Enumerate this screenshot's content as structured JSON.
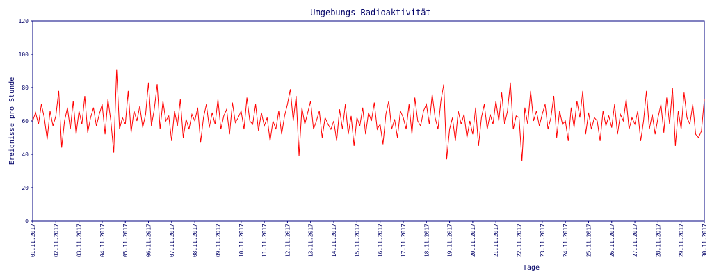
{
  "chart_data": {
    "type": "line",
    "title": "Umgebungs-Radioaktivität",
    "x_label": "Tage",
    "y_label": "Ereignisse pro Stunde",
    "categories": [
      "01.11.2017",
      null,
      null,
      null,
      null,
      null,
      null,
      null,
      "02.11.2017",
      null,
      null,
      null,
      null,
      null,
      null,
      null,
      "03.11.2017",
      null,
      null,
      null,
      null,
      null,
      null,
      null,
      "04.11.2017",
      null,
      null,
      null,
      null,
      null,
      null,
      null,
      "05.11.2017",
      null,
      null,
      null,
      null,
      null,
      null,
      null,
      "06.11.2017",
      null,
      null,
      null,
      null,
      null,
      null,
      null,
      "07.11.2017",
      null,
      null,
      null,
      null,
      null,
      null,
      null,
      "08.11.2017",
      null,
      null,
      null,
      null,
      null,
      null,
      null,
      "09.11.2017",
      null,
      null,
      null,
      null,
      null,
      null,
      null,
      "10.11.2017",
      null,
      null,
      null,
      null,
      null,
      null,
      null,
      "11.11.2017",
      null,
      null,
      null,
      null,
      null,
      null,
      null,
      "12.11.2017",
      null,
      null,
      null,
      null,
      null,
      null,
      null,
      "13.11.2017",
      null,
      null,
      null,
      null,
      null,
      null,
      null,
      "14.11.2017",
      null,
      null,
      null,
      null,
      null,
      null,
      null,
      "15.11.2017",
      null,
      null,
      null,
      null,
      null,
      null,
      null,
      "16.11.2017",
      null,
      null,
      null,
      null,
      null,
      null,
      null,
      "17.11.2017",
      null,
      null,
      null,
      null,
      null,
      null,
      null,
      "18.11.2017",
      null,
      null,
      null,
      null,
      null,
      null,
      null,
      "19.11.2017",
      null,
      null,
      null,
      null,
      null,
      null,
      null,
      "20.11.2017",
      null,
      null,
      null,
      null,
      null,
      null,
      null,
      "21.11.2017",
      null,
      null,
      null,
      null,
      null,
      null,
      null,
      "22.11.2017",
      null,
      null,
      null,
      null,
      null,
      null,
      null,
      "23.11.2017",
      null,
      null,
      null,
      null,
      null,
      null,
      null,
      "24.11.2017",
      null,
      null,
      null,
      null,
      null,
      null,
      null,
      "25.11.2017",
      null,
      null,
      null,
      null,
      null,
      null,
      null,
      "26.11.2017",
      null,
      null,
      null,
      null,
      null,
      null,
      null,
      "27.11.2017",
      null,
      null,
      null,
      null,
      null,
      null,
      null,
      "28.11.2017",
      null,
      null,
      null,
      null,
      null,
      null,
      null,
      "29.11.2017",
      null,
      null,
      null,
      null,
      null,
      null,
      null,
      "30.11.2017"
    ],
    "values": [
      60,
      65,
      58,
      70,
      62,
      49,
      66,
      57,
      63,
      78,
      44,
      60,
      68,
      55,
      72,
      52,
      66,
      58,
      75,
      53,
      62,
      68,
      57,
      64,
      70,
      52,
      73,
      60,
      41,
      91,
      55,
      62,
      58,
      78,
      53,
      66,
      60,
      69,
      56,
      64,
      83,
      57,
      67,
      82,
      55,
      72,
      60,
      63,
      48,
      66,
      57,
      73,
      50,
      61,
      55,
      64,
      60,
      68,
      47,
      62,
      70,
      56,
      65,
      58,
      73,
      55,
      63,
      67,
      52,
      71,
      59,
      62,
      66,
      55,
      74,
      60,
      58,
      70,
      54,
      65,
      57,
      62,
      48,
      60,
      55,
      66,
      52,
      63,
      70,
      79,
      60,
      75,
      39,
      68,
      58,
      65,
      72,
      55,
      60,
      66,
      50,
      62,
      58,
      55,
      60,
      48,
      67,
      55,
      70,
      52,
      63,
      45,
      62,
      57,
      68,
      52,
      65,
      60,
      71,
      55,
      58,
      46,
      64,
      72,
      55,
      61,
      50,
      66,
      62,
      55,
      70,
      52,
      74,
      60,
      57,
      66,
      70,
      58,
      76,
      62,
      55,
      72,
      82,
      37,
      55,
      62,
      48,
      66,
      58,
      64,
      50,
      60,
      52,
      68,
      45,
      62,
      70,
      55,
      64,
      58,
      72,
      60,
      77,
      58,
      66,
      83,
      55,
      63,
      62,
      36,
      68,
      58,
      78,
      60,
      66,
      57,
      64,
      70,
      55,
      62,
      75,
      50,
      66,
      58,
      60,
      48,
      68,
      56,
      72,
      62,
      78,
      52,
      65,
      55,
      62,
      60,
      48,
      66,
      57,
      63,
      56,
      70,
      52,
      64,
      60,
      73,
      55,
      62,
      58,
      66,
      48,
      60,
      78,
      55,
      64,
      52,
      62,
      70,
      53,
      74,
      58,
      80,
      45,
      66,
      55,
      77,
      62,
      58,
      70,
      52,
      50,
      54,
      73
    ],
    "color": "#ff0000",
    "ylim": [
      0,
      120
    ],
    "yticks": [
      0,
      20,
      40,
      60,
      80,
      100,
      120
    ]
  }
}
